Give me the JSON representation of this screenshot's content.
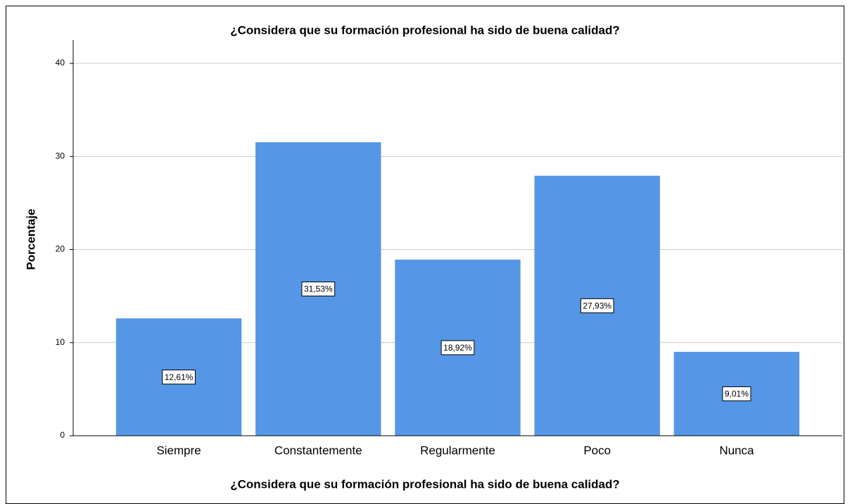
{
  "chart_data": {
    "type": "bar",
    "title": "¿Considera que su formación profesional ha sido de buena calidad?",
    "x_label": "¿Considera que su formación profesional ha sido de buena calidad?",
    "y_label": "Porcentaje",
    "categories": [
      "Siempre",
      "Constantemente",
      "Regularmente",
      "Poco",
      "Nunca"
    ],
    "values": [
      12.61,
      31.53,
      18.92,
      27.93,
      9.01
    ],
    "value_labels": [
      "12,61%",
      "31,53%",
      "18,92%",
      "27,93%",
      "9,01%"
    ],
    "color": "#5596e6",
    "ylim": [
      0,
      42.5
    ],
    "yticks": [
      0,
      10,
      20,
      30,
      40
    ],
    "grid": true
  }
}
